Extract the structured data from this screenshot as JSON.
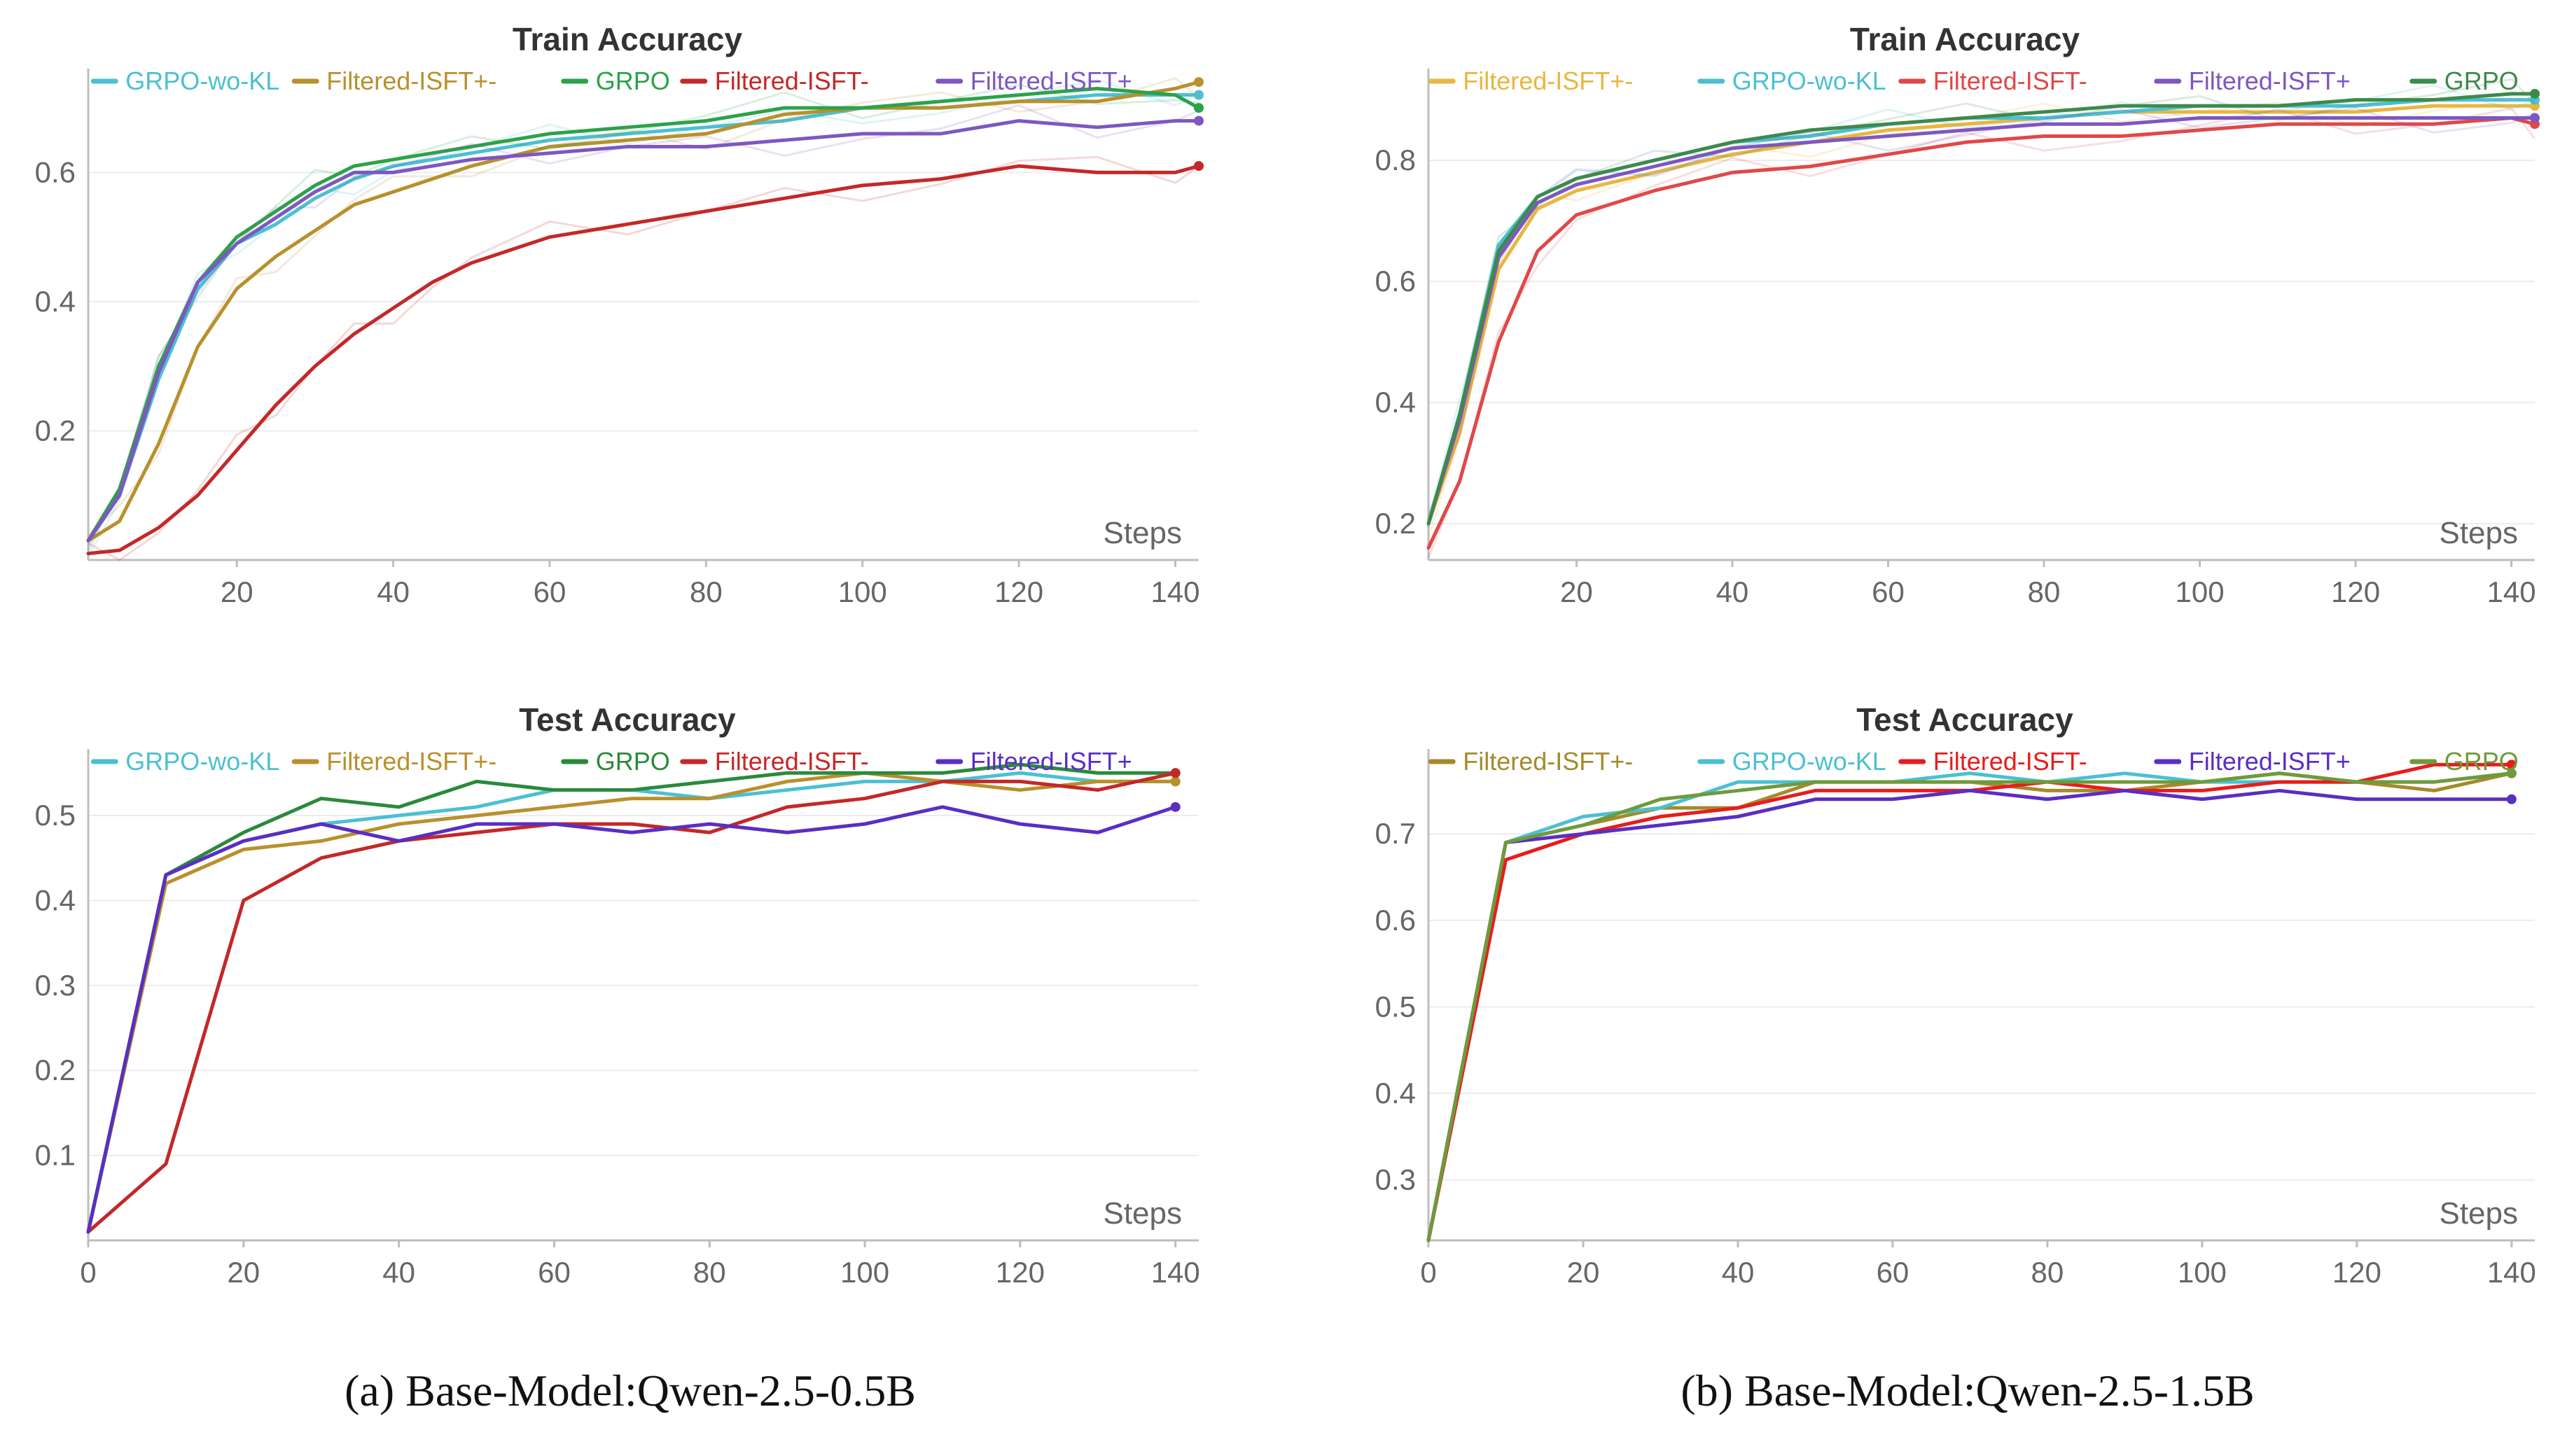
{
  "captions": [
    "(a) Base-Model:Qwen-2.5-0.5B",
    "(b) Base-Model:Qwen-2.5-1.5B"
  ],
  "colors": {
    "GRPO-wo-KL": "#4bc0d2",
    "Filtered-ISFT+-": "#b8902c",
    "Filtered-ISFT+-_b": "#e9b640",
    "GRPO": "#2ca24a",
    "GRPO_b": "#3d8a4c",
    "Filtered-ISFT-": "#c42828",
    "Filtered-ISFT-_b": "#e04848",
    "Filtered-ISFT+": "#7e57c2",
    "Filtered-ISFT+_test": "#5a2ec2",
    "Filtered-ISFT-_test_b": "#e81c1c",
    "GRPO_test_b": "#6f9a3a",
    "Filtered-ISFT+-_test_b": "#a58a2c"
  },
  "chart_data": [
    {
      "id": "a-train",
      "type": "line",
      "title": "Train Accuracy",
      "xlabel": "Steps",
      "ylabel": "",
      "xlim": [
        1,
        143
      ],
      "ylim": [
        0.0,
        0.75
      ],
      "xticks": [
        20,
        40,
        60,
        80,
        100,
        120,
        140
      ],
      "yticks": [
        0.2,
        0.4,
        0.6
      ],
      "legend": [
        "GRPO-wo-KL",
        "Filtered-ISFT+-",
        "GRPO",
        "Filtered-ISFT-",
        "Filtered-ISFT+"
      ],
      "series": [
        {
          "name": "GRPO-wo-KL",
          "color": "#4bc0d2",
          "x": [
            1,
            5,
            10,
            15,
            20,
            25,
            30,
            35,
            40,
            50,
            60,
            70,
            80,
            90,
            100,
            110,
            120,
            130,
            140,
            143
          ],
          "y": [
            0.03,
            0.1,
            0.28,
            0.42,
            0.49,
            0.52,
            0.56,
            0.59,
            0.61,
            0.63,
            0.65,
            0.66,
            0.67,
            0.68,
            0.7,
            0.7,
            0.71,
            0.72,
            0.72,
            0.72
          ]
        },
        {
          "name": "Filtered-ISFT+-",
          "color": "#b8902c",
          "x": [
            1,
            5,
            10,
            15,
            20,
            25,
            30,
            35,
            40,
            50,
            60,
            70,
            80,
            90,
            100,
            110,
            120,
            130,
            140,
            143
          ],
          "y": [
            0.03,
            0.06,
            0.18,
            0.33,
            0.42,
            0.47,
            0.51,
            0.55,
            0.57,
            0.61,
            0.64,
            0.65,
            0.66,
            0.69,
            0.7,
            0.7,
            0.71,
            0.71,
            0.73,
            0.74
          ]
        },
        {
          "name": "GRPO",
          "color": "#2ca24a",
          "x": [
            1,
            5,
            10,
            15,
            20,
            25,
            30,
            35,
            40,
            50,
            60,
            70,
            80,
            90,
            100,
            110,
            120,
            130,
            140,
            143
          ],
          "y": [
            0.03,
            0.11,
            0.3,
            0.43,
            0.5,
            0.54,
            0.58,
            0.61,
            0.62,
            0.64,
            0.66,
            0.67,
            0.68,
            0.7,
            0.7,
            0.71,
            0.72,
            0.73,
            0.72,
            0.7
          ]
        },
        {
          "name": "Filtered-ISFT-",
          "color": "#c42828",
          "x": [
            1,
            5,
            10,
            15,
            20,
            25,
            30,
            35,
            40,
            45,
            50,
            60,
            70,
            80,
            90,
            100,
            110,
            120,
            130,
            140,
            143
          ],
          "y": [
            0.01,
            0.015,
            0.05,
            0.1,
            0.17,
            0.24,
            0.3,
            0.35,
            0.39,
            0.43,
            0.46,
            0.5,
            0.52,
            0.54,
            0.56,
            0.58,
            0.59,
            0.61,
            0.6,
            0.6,
            0.61
          ]
        },
        {
          "name": "Filtered-ISFT+",
          "color": "#7e57c2",
          "x": [
            1,
            5,
            10,
            15,
            20,
            25,
            30,
            35,
            40,
            50,
            60,
            70,
            80,
            90,
            100,
            110,
            120,
            130,
            140,
            143
          ],
          "y": [
            0.03,
            0.1,
            0.29,
            0.43,
            0.49,
            0.53,
            0.57,
            0.6,
            0.6,
            0.62,
            0.63,
            0.64,
            0.64,
            0.65,
            0.66,
            0.66,
            0.68,
            0.67,
            0.68,
            0.68
          ]
        }
      ]
    },
    {
      "id": "b-train",
      "type": "line",
      "title": "Train Accuracy",
      "xlabel": "Steps",
      "ylabel": "",
      "xlim": [
        1,
        143
      ],
      "ylim": [
        0.14,
        0.94
      ],
      "xticks": [
        20,
        40,
        60,
        80,
        100,
        120,
        140
      ],
      "yticks": [
        0.2,
        0.4,
        0.6,
        0.8
      ],
      "legend": [
        "Filtered-ISFT+-",
        "GRPO-wo-KL",
        "Filtered-ISFT-",
        "Filtered-ISFT+",
        "GRPO"
      ],
      "series": [
        {
          "name": "Filtered-ISFT+-",
          "color": "#e9b640",
          "x": [
            1,
            5,
            10,
            15,
            20,
            30,
            40,
            50,
            60,
            70,
            80,
            90,
            100,
            110,
            120,
            130,
            140,
            143
          ],
          "y": [
            0.2,
            0.35,
            0.62,
            0.72,
            0.75,
            0.78,
            0.81,
            0.83,
            0.85,
            0.86,
            0.87,
            0.88,
            0.88,
            0.88,
            0.88,
            0.89,
            0.89,
            0.89
          ]
        },
        {
          "name": "GRPO-wo-KL",
          "color": "#4bc0d2",
          "x": [
            1,
            5,
            10,
            15,
            20,
            30,
            40,
            50,
            60,
            70,
            80,
            90,
            100,
            110,
            120,
            130,
            140,
            143
          ],
          "y": [
            0.2,
            0.38,
            0.66,
            0.74,
            0.77,
            0.8,
            0.83,
            0.84,
            0.86,
            0.87,
            0.87,
            0.88,
            0.89,
            0.89,
            0.89,
            0.9,
            0.9,
            0.9
          ]
        },
        {
          "name": "Filtered-ISFT-",
          "color": "#e04848",
          "x": [
            1,
            5,
            10,
            15,
            20,
            30,
            40,
            50,
            60,
            70,
            80,
            90,
            100,
            110,
            120,
            130,
            140,
            143
          ],
          "y": [
            0.16,
            0.27,
            0.5,
            0.65,
            0.71,
            0.75,
            0.78,
            0.79,
            0.81,
            0.83,
            0.84,
            0.84,
            0.85,
            0.86,
            0.86,
            0.86,
            0.87,
            0.86
          ]
        },
        {
          "name": "Filtered-ISFT+",
          "color": "#7e57c2",
          "x": [
            1,
            5,
            10,
            15,
            20,
            30,
            40,
            50,
            60,
            70,
            80,
            90,
            100,
            110,
            120,
            130,
            140,
            143
          ],
          "y": [
            0.2,
            0.37,
            0.64,
            0.73,
            0.76,
            0.79,
            0.82,
            0.83,
            0.84,
            0.85,
            0.86,
            0.86,
            0.87,
            0.87,
            0.87,
            0.87,
            0.87,
            0.87
          ]
        },
        {
          "name": "GRPO",
          "color": "#3d8a4c",
          "x": [
            1,
            5,
            10,
            15,
            20,
            30,
            40,
            50,
            60,
            70,
            80,
            90,
            100,
            110,
            120,
            130,
            140,
            143
          ],
          "y": [
            0.2,
            0.38,
            0.65,
            0.74,
            0.77,
            0.8,
            0.83,
            0.85,
            0.86,
            0.87,
            0.88,
            0.89,
            0.89,
            0.89,
            0.9,
            0.9,
            0.91,
            0.91
          ]
        }
      ]
    },
    {
      "id": "a-test",
      "type": "line",
      "title": "Test Accuracy",
      "xlabel": "Steps",
      "ylabel": "",
      "xlim": [
        0,
        143
      ],
      "ylim": [
        0.0,
        0.57
      ],
      "xticks": [
        0,
        20,
        40,
        60,
        80,
        100,
        120,
        140
      ],
      "yticks": [
        0.1,
        0.2,
        0.3,
        0.4,
        0.5
      ],
      "legend": [
        "GRPO-wo-KL",
        "Filtered-ISFT+-",
        "GRPO",
        "Filtered-ISFT-",
        "Filtered-ISFT+"
      ],
      "series": [
        {
          "name": "GRPO-wo-KL",
          "color": "#4bc0d2",
          "x": [
            0,
            10,
            20,
            30,
            40,
            50,
            60,
            70,
            80,
            90,
            100,
            110,
            120,
            130,
            140
          ],
          "y": [
            0.01,
            0.43,
            0.47,
            0.49,
            0.5,
            0.51,
            0.53,
            0.53,
            0.52,
            0.53,
            0.54,
            0.54,
            0.55,
            0.54,
            0.54
          ]
        },
        {
          "name": "Filtered-ISFT+-",
          "color": "#b8902c",
          "x": [
            0,
            10,
            20,
            30,
            40,
            50,
            60,
            70,
            80,
            90,
            100,
            110,
            120,
            130,
            140
          ],
          "y": [
            0.01,
            0.42,
            0.46,
            0.47,
            0.49,
            0.5,
            0.51,
            0.52,
            0.52,
            0.54,
            0.55,
            0.54,
            0.53,
            0.54,
            0.54
          ]
        },
        {
          "name": "GRPO",
          "color": "#2a8a3c",
          "x": [
            0,
            10,
            20,
            30,
            40,
            50,
            60,
            70,
            80,
            90,
            100,
            110,
            120,
            130,
            140
          ],
          "y": [
            0.01,
            0.43,
            0.48,
            0.52,
            0.51,
            0.54,
            0.53,
            0.53,
            0.54,
            0.55,
            0.55,
            0.55,
            0.56,
            0.55,
            0.55
          ]
        },
        {
          "name": "Filtered-ISFT-",
          "color": "#c42828",
          "x": [
            0,
            10,
            20,
            30,
            40,
            50,
            60,
            70,
            80,
            90,
            100,
            110,
            120,
            130,
            140
          ],
          "y": [
            0.01,
            0.09,
            0.4,
            0.45,
            0.47,
            0.48,
            0.49,
            0.49,
            0.48,
            0.51,
            0.52,
            0.54,
            0.54,
            0.53,
            0.55
          ]
        },
        {
          "name": "Filtered-ISFT+",
          "color": "#5a2ec2",
          "x": [
            0,
            10,
            20,
            30,
            40,
            50,
            60,
            70,
            80,
            90,
            100,
            110,
            120,
            130,
            140
          ],
          "y": [
            0.01,
            0.43,
            0.47,
            0.49,
            0.47,
            0.49,
            0.49,
            0.48,
            0.49,
            0.48,
            0.49,
            0.51,
            0.49,
            0.48,
            0.51
          ]
        }
      ]
    },
    {
      "id": "b-test",
      "type": "line",
      "title": "Test Accuracy",
      "xlabel": "Steps",
      "ylabel": "",
      "xlim": [
        0,
        143
      ],
      "ylim": [
        0.23,
        0.79
      ],
      "xticks": [
        0,
        20,
        40,
        60,
        80,
        100,
        120,
        140
      ],
      "yticks": [
        0.3,
        0.4,
        0.5,
        0.6,
        0.7
      ],
      "legend": [
        "Filtered-ISFT+-",
        "GRPO-wo-KL",
        "Filtered-ISFT-",
        "Filtered-ISFT+",
        "GRPO"
      ],
      "series": [
        {
          "name": "Filtered-ISFT+-",
          "color": "#a58a2c",
          "x": [
            0,
            10,
            20,
            30,
            40,
            50,
            60,
            70,
            80,
            90,
            100,
            110,
            120,
            130,
            140
          ],
          "y": [
            0.23,
            0.69,
            0.71,
            0.73,
            0.73,
            0.76,
            0.76,
            0.76,
            0.75,
            0.75,
            0.76,
            0.77,
            0.76,
            0.75,
            0.77
          ]
        },
        {
          "name": "GRPO-wo-KL",
          "color": "#4bc0d2",
          "x": [
            0,
            10,
            20,
            30,
            40,
            50,
            60,
            70,
            80,
            90,
            100,
            110,
            120,
            130,
            140
          ],
          "y": [
            0.23,
            0.69,
            0.72,
            0.73,
            0.76,
            0.76,
            0.76,
            0.77,
            0.76,
            0.77,
            0.76,
            0.76,
            0.76,
            0.76,
            0.77
          ]
        },
        {
          "name": "Filtered-ISFT-",
          "color": "#e81c1c",
          "x": [
            0,
            10,
            20,
            30,
            40,
            50,
            60,
            70,
            80,
            90,
            100,
            110,
            120,
            130,
            140
          ],
          "y": [
            0.23,
            0.67,
            0.7,
            0.72,
            0.73,
            0.75,
            0.75,
            0.75,
            0.76,
            0.75,
            0.75,
            0.76,
            0.76,
            0.78,
            0.78
          ]
        },
        {
          "name": "Filtered-ISFT+",
          "color": "#5a2ec2",
          "x": [
            0,
            10,
            20,
            30,
            40,
            50,
            60,
            70,
            80,
            90,
            100,
            110,
            120,
            130,
            140
          ],
          "y": [
            0.23,
            0.69,
            0.7,
            0.71,
            0.72,
            0.74,
            0.74,
            0.75,
            0.74,
            0.75,
            0.74,
            0.75,
            0.74,
            0.74,
            0.74
          ]
        },
        {
          "name": "GRPO",
          "color": "#6f9a3a",
          "x": [
            0,
            10,
            20,
            30,
            40,
            50,
            60,
            70,
            80,
            90,
            100,
            110,
            120,
            130,
            140
          ],
          "y": [
            0.23,
            0.69,
            0.71,
            0.74,
            0.75,
            0.76,
            0.76,
            0.76,
            0.76,
            0.76,
            0.76,
            0.77,
            0.76,
            0.76,
            0.77
          ]
        }
      ]
    }
  ]
}
